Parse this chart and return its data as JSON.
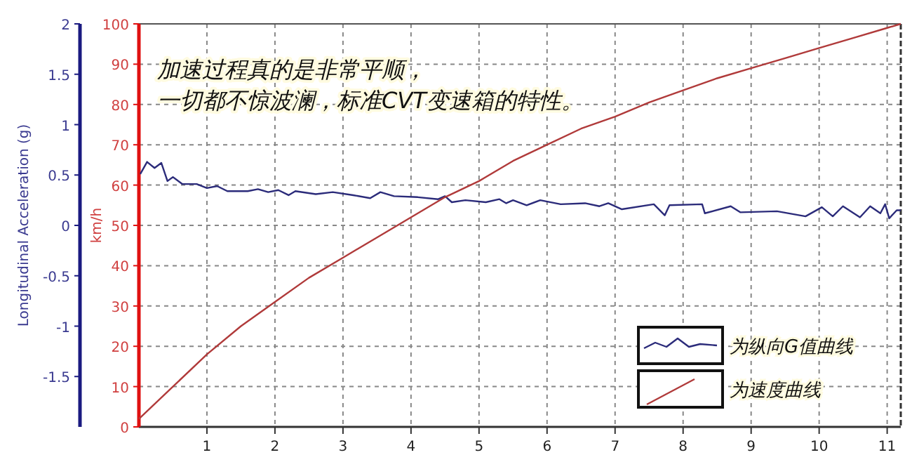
{
  "chart_data": {
    "type": "line",
    "ylabel": "Longitudinal Acceleration (g)",
    "y2label": "km/h",
    "annotations": [
      "加速过程真的是非常平顺，",
      "一切都不惊波澜，标准CVT变速箱的特性。"
    ],
    "xlim": [
      0,
      11.2
    ],
    "xticks": [
      1,
      2,
      3,
      4,
      5,
      6,
      7,
      8,
      9,
      10,
      11
    ],
    "ylim": [
      -2,
      2
    ],
    "yticks": [
      -1.5,
      -1,
      -0.5,
      0,
      0.5,
      1,
      1.5,
      2
    ],
    "y2lim": [
      0,
      100
    ],
    "y2ticks": [
      0,
      10,
      20,
      30,
      40,
      50,
      60,
      70,
      80,
      90,
      100
    ],
    "grid": true,
    "legend": "bottom right",
    "series": [
      {
        "name": "为纵向G值曲线",
        "color": "#2b2b7a",
        "axis": "y",
        "x": [
          0.02,
          0.12,
          0.23,
          0.33,
          0.42,
          0.5,
          0.64,
          0.85,
          1.0,
          1.15,
          1.3,
          1.6,
          1.75,
          1.9,
          2.05,
          2.2,
          2.3,
          2.6,
          2.85,
          3.15,
          3.4,
          3.55,
          3.75,
          4.1,
          4.4,
          4.5,
          4.6,
          4.8,
          5.1,
          5.3,
          5.4,
          5.5,
          5.7,
          5.9,
          6.2,
          6.56,
          6.77,
          6.9,
          7.1,
          7.57,
          7.73,
          7.8,
          8.28,
          8.32,
          8.7,
          8.84,
          9.38,
          9.8,
          10.04,
          10.2,
          10.35,
          10.6,
          10.75,
          10.9,
          10.97,
          11.03,
          11.14,
          11.2
        ],
        "values": [
          0.51,
          0.63,
          0.57,
          0.62,
          0.44,
          0.48,
          0.41,
          0.41,
          0.37,
          0.39,
          0.34,
          0.34,
          0.36,
          0.33,
          0.35,
          0.3,
          0.34,
          0.31,
          0.33,
          0.3,
          0.27,
          0.33,
          0.29,
          0.28,
          0.26,
          0.29,
          0.23,
          0.25,
          0.23,
          0.26,
          0.22,
          0.25,
          0.2,
          0.25,
          0.21,
          0.22,
          0.19,
          0.22,
          0.16,
          0.21,
          0.1,
          0.2,
          0.21,
          0.12,
          0.19,
          0.13,
          0.14,
          0.09,
          0.18,
          0.09,
          0.19,
          0.08,
          0.19,
          0.12,
          0.21,
          0.07,
          0.15,
          0.15
        ]
      },
      {
        "name": "为速度曲线",
        "color": "#b03a3a",
        "axis": "y2",
        "x": [
          0,
          0.5,
          1,
          1.5,
          2,
          2.5,
          3,
          3.5,
          4,
          4.5,
          5,
          5.5,
          6,
          6.5,
          7,
          7.5,
          8,
          8.5,
          9,
          9.5,
          10,
          10.5,
          11,
          11.2
        ],
        "values": [
          2,
          10,
          18,
          25,
          31,
          37,
          42,
          47,
          52,
          57,
          61,
          66,
          70,
          74,
          77,
          80.5,
          83.5,
          86.5,
          89,
          91.5,
          94,
          96.5,
          99,
          100
        ]
      }
    ]
  }
}
